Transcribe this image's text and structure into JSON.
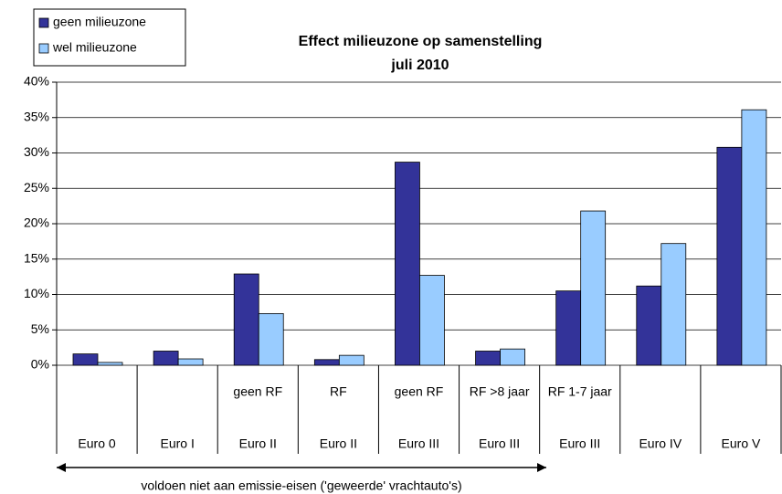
{
  "chart_data": {
    "type": "bar",
    "title": "Effect milieuzone op samenstelling",
    "subtitle": "juli 2010",
    "categories": [
      null,
      null,
      "geen RF",
      "RF",
      "geen RF",
      "RF >8 jaar",
      "RF 1-7 jaar",
      null,
      null
    ],
    "groups": [
      "Euro 0",
      "Euro I",
      "Euro II",
      "Euro II",
      "Euro III",
      "Euro III",
      "Euro III",
      "Euro IV",
      "Euro V"
    ],
    "series": [
      {
        "name": "geen milieuzone",
        "color": "#333399",
        "values": [
          1.6,
          2.0,
          12.9,
          0.8,
          28.7,
          2.0,
          10.5,
          11.2,
          30.8
        ]
      },
      {
        "name": "wel milieuzone",
        "color": "#99ccff",
        "values": [
          0.4,
          0.9,
          7.3,
          1.4,
          12.7,
          2.3,
          21.8,
          17.2,
          36.1
        ]
      }
    ],
    "ylim": [
      0,
      40
    ],
    "yticks": [
      {
        "value": 0,
        "label": "0%"
      },
      {
        "value": 5,
        "label": "5%"
      },
      {
        "value": 10,
        "label": "10%"
      },
      {
        "value": 15,
        "label": "15%"
      },
      {
        "value": 20,
        "label": "20%"
      },
      {
        "value": 25,
        "label": "25%"
      },
      {
        "value": 30,
        "label": "30%"
      },
      {
        "value": 35,
        "label": "35%"
      },
      {
        "value": 40,
        "label": "40%"
      }
    ],
    "grid": true,
    "annotation": "voldoen niet aan emissie-eisen ('geweerde' vrachtauto's)"
  }
}
